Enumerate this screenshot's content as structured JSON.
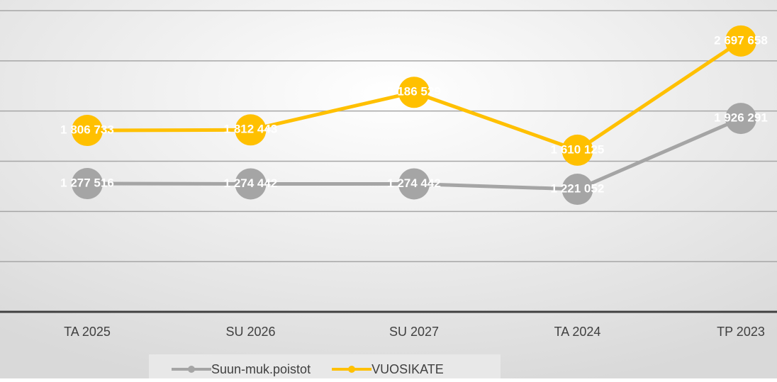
{
  "chart_data": {
    "type": "line",
    "categories": [
      "TA 2025",
      "SU 2026",
      "SU 2027",
      "TA 2024",
      "TP 2023"
    ],
    "series": [
      {
        "name": "Suun-muk.poistot",
        "color": "#a5a5a5",
        "values": [
          1277516,
          1274442,
          1274442,
          1221052,
          1926291
        ],
        "value_labels": [
          "1 277 516",
          "1 274 442",
          "1 274 442",
          "1 221 052",
          "1 926 291"
        ]
      },
      {
        "name": "VUOSIKATE",
        "color": "#ffc000",
        "values": [
          1806733,
          1812443,
          2186529,
          1610125,
          2697658
        ],
        "value_labels": [
          "1 806 733",
          "1 812 443",
          "2 186 529",
          "1 610 125",
          "2 697 658"
        ]
      }
    ],
    "ylim": [
      0,
      3000000
    ],
    "yticks": [
      0,
      500000,
      1000000,
      1500000,
      2000000,
      2500000,
      3000000
    ],
    "show_ytick_labels": false,
    "grid": true
  }
}
